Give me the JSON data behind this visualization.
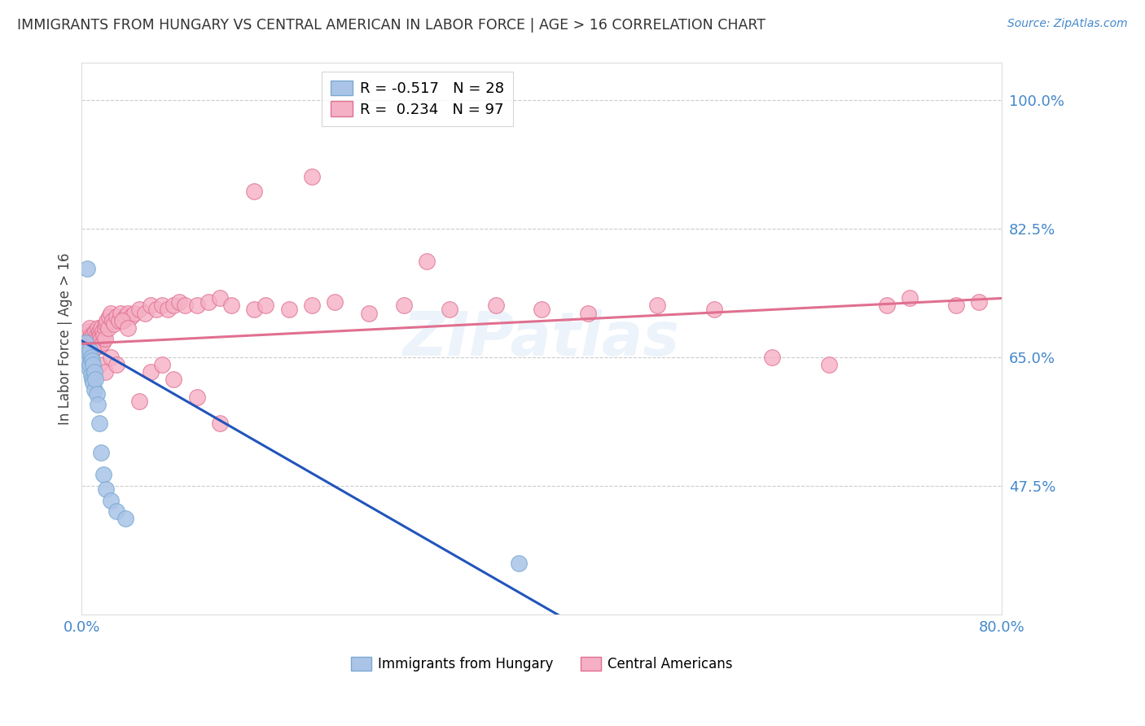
{
  "title": "IMMIGRANTS FROM HUNGARY VS CENTRAL AMERICAN IN LABOR FORCE | AGE > 16 CORRELATION CHART",
  "source": "Source: ZipAtlas.com",
  "ylabel": "In Labor Force | Age > 16",
  "xlim": [
    0.0,
    0.8
  ],
  "ylim": [
    0.3,
    1.05
  ],
  "yticks": [
    0.475,
    0.65,
    0.825,
    1.0
  ],
  "ytick_labels": [
    "47.5%",
    "65.0%",
    "82.5%",
    "100.0%"
  ],
  "xticks": [
    0.0,
    0.8
  ],
  "xtick_labels": [
    "0.0%",
    "80.0%"
  ],
  "background_color": "#ffffff",
  "grid_color": "#cccccc",
  "hungary_color": "#aac4e8",
  "hungary_edge_color": "#7aaad0",
  "hungary_line_color": "#2255bb",
  "ca_color": "#f5b0c5",
  "ca_edge_color": "#e07090",
  "ca_line_color": "#e07090",
  "legend_label_hungary": "R = -0.517   N = 28",
  "legend_label_ca": "R =  0.234   N = 97",
  "bottom_legend_hungary": "Immigrants from Hungary",
  "bottom_legend_ca": "Central Americans",
  "title_color": "#333333",
  "axis_label_color": "#4488cc",
  "watermark": "ZIPatlas",
  "hungary_line_x0": 0.0,
  "hungary_line_y0": 0.672,
  "hungary_line_slope": -0.9,
  "ca_line_x0": 0.0,
  "ca_line_y0": 0.668,
  "ca_line_x1": 0.8,
  "ca_line_y1": 0.73,
  "hungary_x": [
    0.003,
    0.004,
    0.005,
    0.005,
    0.006,
    0.006,
    0.007,
    0.007,
    0.008,
    0.008,
    0.009,
    0.009,
    0.01,
    0.01,
    0.011,
    0.011,
    0.012,
    0.013,
    0.014,
    0.015,
    0.017,
    0.019,
    0.021,
    0.025,
    0.03,
    0.038,
    0.38,
    0.005
  ],
  "hungary_y": [
    0.67,
    0.66,
    0.66,
    0.645,
    0.655,
    0.635,
    0.66,
    0.64,
    0.65,
    0.625,
    0.645,
    0.62,
    0.64,
    0.615,
    0.63,
    0.605,
    0.62,
    0.6,
    0.585,
    0.56,
    0.52,
    0.49,
    0.47,
    0.455,
    0.44,
    0.43,
    0.37,
    0.77
  ],
  "ca_x": [
    0.003,
    0.004,
    0.005,
    0.005,
    0.006,
    0.006,
    0.007,
    0.007,
    0.008,
    0.008,
    0.009,
    0.009,
    0.01,
    0.01,
    0.01,
    0.011,
    0.011,
    0.012,
    0.012,
    0.013,
    0.013,
    0.014,
    0.014,
    0.015,
    0.015,
    0.016,
    0.016,
    0.017,
    0.017,
    0.018,
    0.018,
    0.019,
    0.02,
    0.02,
    0.021,
    0.022,
    0.023,
    0.024,
    0.025,
    0.027,
    0.028,
    0.03,
    0.032,
    0.034,
    0.036,
    0.038,
    0.04,
    0.043,
    0.046,
    0.05,
    0.055,
    0.06,
    0.065,
    0.07,
    0.075,
    0.08,
    0.085,
    0.09,
    0.1,
    0.11,
    0.12,
    0.13,
    0.15,
    0.16,
    0.18,
    0.2,
    0.22,
    0.25,
    0.28,
    0.32,
    0.36,
    0.4,
    0.44,
    0.5,
    0.55,
    0.6,
    0.65,
    0.7,
    0.72,
    0.76,
    0.78,
    0.01,
    0.015,
    0.02,
    0.025,
    0.03,
    0.035,
    0.04,
    0.05,
    0.06,
    0.07,
    0.08,
    0.1,
    0.12,
    0.15,
    0.2,
    0.3
  ],
  "ca_y": [
    0.67,
    0.675,
    0.665,
    0.68,
    0.67,
    0.685,
    0.675,
    0.69,
    0.68,
    0.67,
    0.675,
    0.665,
    0.68,
    0.67,
    0.66,
    0.675,
    0.665,
    0.685,
    0.67,
    0.68,
    0.665,
    0.69,
    0.675,
    0.685,
    0.67,
    0.68,
    0.665,
    0.69,
    0.675,
    0.685,
    0.67,
    0.68,
    0.69,
    0.675,
    0.695,
    0.7,
    0.69,
    0.705,
    0.71,
    0.7,
    0.695,
    0.705,
    0.7,
    0.71,
    0.7,
    0.705,
    0.71,
    0.705,
    0.71,
    0.715,
    0.71,
    0.72,
    0.715,
    0.72,
    0.715,
    0.72,
    0.725,
    0.72,
    0.72,
    0.725,
    0.73,
    0.72,
    0.715,
    0.72,
    0.715,
    0.72,
    0.725,
    0.71,
    0.72,
    0.715,
    0.72,
    0.715,
    0.71,
    0.72,
    0.715,
    0.65,
    0.64,
    0.72,
    0.73,
    0.72,
    0.725,
    0.66,
    0.64,
    0.63,
    0.65,
    0.64,
    0.7,
    0.69,
    0.59,
    0.63,
    0.64,
    0.62,
    0.595,
    0.56,
    0.875,
    0.895,
    0.78
  ]
}
